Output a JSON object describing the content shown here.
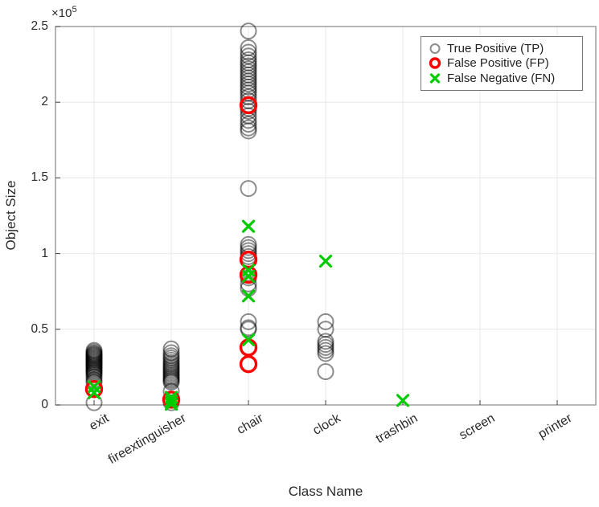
{
  "figure": {
    "xlabel": "Class Name",
    "ylabel": "Object Size",
    "y_axis_multiplier": {
      "base": "×10",
      "exponent": "5"
    },
    "colors": {
      "background": "#ffffff",
      "grid": "#e8e8e8",
      "axis_box": "#8f8f8f",
      "tick_mark": "#3f3f3f",
      "text": "#2b2b2b"
    }
  },
  "chart_data": {
    "type": "scatter",
    "title": "",
    "xlabel": "Class Name",
    "ylabel": "Object Size",
    "categories": [
      "exit",
      "fireextinguisher",
      "chair",
      "clock",
      "trashbin",
      "screen",
      "printer"
    ],
    "ylim": [
      0,
      250000
    ],
    "yticks": [
      0,
      50000,
      100000,
      150000,
      200000,
      250000
    ],
    "ytick_labels": [
      "0",
      "0.5",
      "1",
      "1.5",
      "2",
      "2.5"
    ],
    "y_multiplier": 100000,
    "grid": true,
    "legend_position": "northeast",
    "series": [
      {
        "name": "True Positive (TP)",
        "marker": "circle",
        "color": "#000000",
        "alpha": 0.45,
        "line_width": 2,
        "size": 19,
        "points": {
          "exit": [
            36000,
            35000,
            34200,
            33500,
            33000,
            32400,
            31800,
            31200,
            30600,
            30000,
            29400,
            28800,
            28200,
            27600,
            27000,
            26400,
            25700,
            25000,
            24200,
            23400,
            22600,
            21800,
            21000,
            20000,
            18500,
            16500,
            15000,
            1500
          ],
          "fireextinguisher": [
            37000,
            34500,
            32500,
            31000,
            29500,
            28000,
            26800,
            25600,
            24500,
            23400,
            22300,
            21200,
            20100,
            19000,
            18000,
            17000,
            16000,
            15000,
            9000,
            1500
          ],
          "chair": [
            247000,
            236000,
            233000,
            230500,
            228000,
            226000,
            224000,
            222000,
            220000,
            218000,
            216000,
            214000,
            212000,
            210000,
            208000,
            206000,
            203500,
            201000,
            198500,
            196000,
            194000,
            191000,
            188000,
            185500,
            183000,
            181000,
            143000,
            106000,
            104000,
            102000,
            100000,
            98000,
            96000,
            84000,
            80000,
            77000,
            55000,
            51000,
            50000
          ],
          "clock": [
            55000,
            50000,
            42000,
            40000,
            38000,
            36000,
            34000,
            22000
          ]
        }
      },
      {
        "name": "False Positive (FP)",
        "marker": "circle",
        "color": "#ff0000",
        "alpha": 1,
        "line_width": 3.4,
        "size": 19,
        "points": {
          "exit": [
            10500
          ],
          "fireextinguisher": [
            3500
          ],
          "chair": [
            198000,
            96000,
            86000,
            38000,
            27000
          ]
        }
      },
      {
        "name": "False Negative (FN)",
        "marker": "x",
        "color": "#00cc00",
        "alpha": 1,
        "line_width": 3.2,
        "size": 13,
        "points": {
          "exit": [
            12000,
            8000
          ],
          "fireextinguisher": [
            5000,
            2500,
            500
          ],
          "chair": [
            118000,
            89000,
            85000,
            72000,
            43000
          ],
          "clock": [
            95000
          ],
          "trashbin": [
            3000
          ]
        }
      }
    ]
  }
}
